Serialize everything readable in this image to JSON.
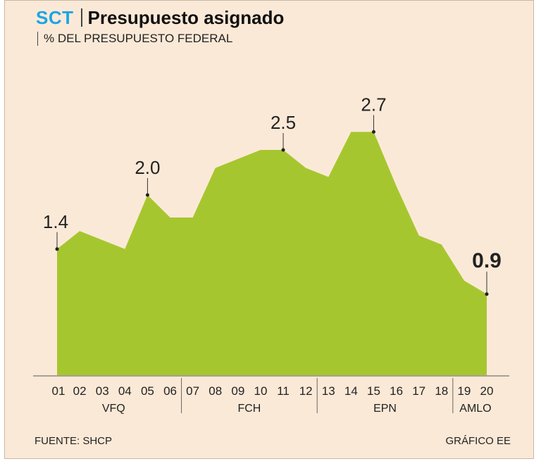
{
  "header": {
    "brand": "SCT",
    "title": "Presupuesto asignado",
    "subtitle": "% DEL PRESUPUESTO FEDERAL"
  },
  "footer": {
    "source": "FUENTE: SHCP",
    "credit": "GRÁFICO EE"
  },
  "colors": {
    "area": "#a6c62f",
    "background": "#fbe9d7",
    "brand": "#1aa6e6"
  },
  "chart_data": {
    "type": "area",
    "title": "Presupuesto asignado",
    "ylabel": "% DEL PRESUPUESTO FEDERAL",
    "ylim": [
      0,
      3.0
    ],
    "x": [
      "01",
      "02",
      "03",
      "04",
      "05",
      "06",
      "07",
      "08",
      "09",
      "10",
      "11",
      "12",
      "13",
      "14",
      "15",
      "16",
      "17",
      "18",
      "19",
      "20"
    ],
    "values": [
      1.4,
      1.6,
      1.5,
      1.4,
      2.0,
      1.75,
      1.75,
      2.3,
      2.4,
      2.5,
      2.5,
      2.3,
      2.2,
      2.7,
      2.7,
      2.1,
      1.55,
      1.45,
      1.05,
      0.9
    ],
    "annotations": [
      {
        "index": 0,
        "label": "1.4"
      },
      {
        "index": 4,
        "label": "2.0"
      },
      {
        "index": 10,
        "label": "2.5"
      },
      {
        "index": 14,
        "label": "2.7"
      },
      {
        "index": 19,
        "label": "0.9",
        "bold": true
      }
    ],
    "groups": [
      {
        "label": "VFQ",
        "start": 0,
        "end": 5
      },
      {
        "label": "FCH",
        "start": 6,
        "end": 11
      },
      {
        "label": "EPN",
        "start": 12,
        "end": 17
      },
      {
        "label": "AMLO",
        "start": 18,
        "end": 19
      }
    ],
    "grid": false
  }
}
